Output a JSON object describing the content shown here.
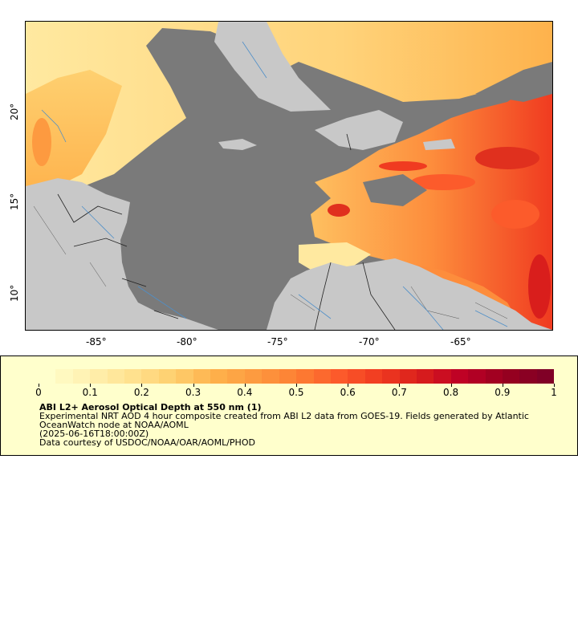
{
  "map": {
    "x_ticks": [
      "-85°",
      "-80°",
      "-75°",
      "-70°",
      "-65°"
    ],
    "y_ticks": [
      "20°",
      "15°",
      "10°"
    ],
    "extent": {
      "lon_min": -89,
      "lon_max": -60,
      "lat_min": 8,
      "lat_max": 25
    },
    "colors": {
      "no_data": "#7a7a7a",
      "land": "#c8c8c8",
      "border": "#222222",
      "river": "#4f8fc8"
    }
  },
  "legend": {
    "tick_labels": [
      "0",
      "0.1",
      "0.2",
      "0.3",
      "0.4",
      "0.5",
      "0.6",
      "0.7",
      "0.8",
      "0.9",
      "1"
    ],
    "colormap": [
      "#ffffcc",
      "#fff0b0",
      "#ffe290",
      "#fed070",
      "#feb24c",
      "#fd9a40",
      "#fd7f33",
      "#fc5b2b",
      "#f03b20",
      "#d91e1c",
      "#bd0026",
      "#99001f",
      "#800026"
    ],
    "title": "ABI L2+ Aerosol Optical Depth at 550 nm (1)",
    "line1": "Experimental NRT AOD 4 hour composite created from ABI L2 data from GOES-19. Fields generated by Atlantic OceanWatch node at NOAA/AOML",
    "line2": "(2025-06-16T18:00:00Z)",
    "line3": "Data courtesy of USDOC/NOAA/OAR/AOML/PHOD"
  }
}
